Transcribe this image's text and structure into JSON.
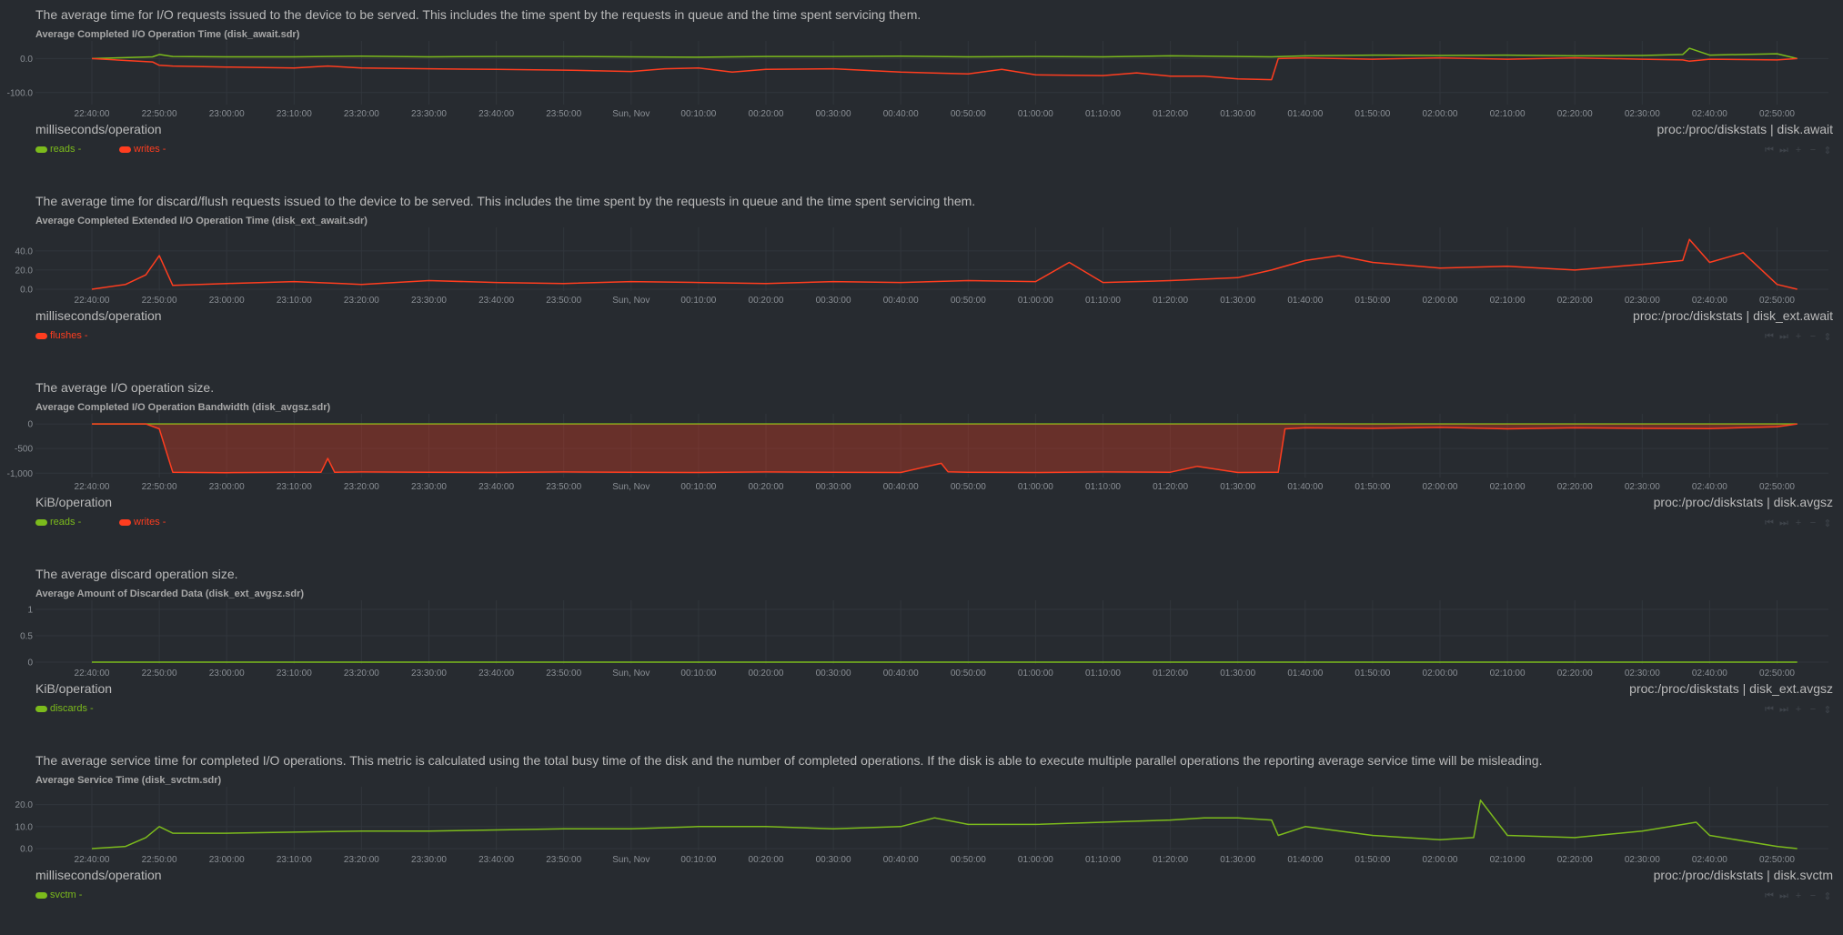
{
  "sections": [
    {
      "description": "The average time for I/O requests issued to the device to be served. This includes the time spent by the requests in queue and the time spent servicing them.",
      "title": "Average Completed I/O Operation Time (disk_await.sdr)",
      "units": "milliseconds/operation",
      "context": "proc:/proc/diskstats | disk.await",
      "legend": [
        {
          "label": "reads",
          "value": "-",
          "color": "#7cbb1c"
        },
        {
          "label": "writes",
          "value": "-",
          "color": "#ff3d1f"
        }
      ]
    },
    {
      "description": "The average time for discard/flush requests issued to the device to be served. This includes the time spent by the requests in queue and the time spent servicing them.",
      "title": "Average Completed Extended I/O Operation Time (disk_ext_await.sdr)",
      "units": "milliseconds/operation",
      "context": "proc:/proc/diskstats | disk_ext.await",
      "legend": [
        {
          "label": "flushes",
          "value": "-",
          "color": "#ff3d1f"
        }
      ]
    },
    {
      "description": "The average I/O operation size.",
      "title": "Average Completed I/O Operation Bandwidth (disk_avgsz.sdr)",
      "units": "KiB/operation",
      "context": "proc:/proc/diskstats | disk.avgsz",
      "legend": [
        {
          "label": "reads",
          "value": "-",
          "color": "#7cbb1c"
        },
        {
          "label": "writes",
          "value": "-",
          "color": "#ff3d1f"
        }
      ]
    },
    {
      "description": "The average discard operation size.",
      "title": "Average Amount of Discarded Data (disk_ext_avgsz.sdr)",
      "units": "KiB/operation",
      "context": "proc:/proc/diskstats | disk_ext.avgsz",
      "legend": [
        {
          "label": "discards",
          "value": "-",
          "color": "#7cbb1c"
        }
      ]
    },
    {
      "description": "The average service time for completed I/O operations. This metric is calculated using the total busy time of the disk and the number of completed operations. If the disk is able to execute multiple parallel operations the reporting average service time will be misleading.",
      "title": "Average Service Time (disk_svctm.sdr)",
      "units": "milliseconds/operation",
      "context": "proc:/proc/diskstats | disk.svctm",
      "legend": [
        {
          "label": "svctm",
          "value": "-",
          "color": "#7cbb1c"
        }
      ]
    }
  ],
  "toolbar": [
    "⏮",
    "⏭",
    "+",
    "−",
    "⇕"
  ],
  "chart_data": [
    {
      "type": "line",
      "title": "Average Completed I/O Operation Time (disk_await.sdr)",
      "ylabel": "milliseconds/operation",
      "yticks": [
        "0.0",
        "-100.0"
      ],
      "ylim": [
        -130,
        25
      ],
      "xticks": [
        "22:40:00",
        "22:50:00",
        "23:00:00",
        "23:10:00",
        "23:20:00",
        "23:30:00",
        "23:40:00",
        "23:50:00",
        "Sun, Nov",
        "00:10:00",
        "00:20:00",
        "00:30:00",
        "00:40:00",
        "00:50:00",
        "01:00:00",
        "01:10:00",
        "01:20:00",
        "01:30:00",
        "01:40:00",
        "01:50:00",
        "02:00:00",
        "02:10:00",
        "02:20:00",
        "02:30:00",
        "02:40:00",
        "02:50:00"
      ],
      "series": [
        {
          "name": "reads",
          "color": "#7cbb1c",
          "x": [
            0,
            0.9,
            1,
            1.2,
            2,
            3,
            4,
            5,
            6,
            7,
            8,
            9,
            10,
            11,
            12,
            13,
            14,
            15,
            16,
            17,
            17.5,
            18,
            19,
            20,
            21,
            22,
            23,
            23.6,
            23.7,
            24,
            25,
            25.3
          ],
          "y": [
            0,
            5,
            12,
            6,
            5,
            5,
            7,
            5,
            6,
            6,
            5,
            4,
            6,
            6,
            7,
            5,
            6,
            5,
            8,
            6,
            5,
            8,
            10,
            9,
            10,
            8,
            9,
            12,
            30,
            10,
            14,
            0
          ]
        },
        {
          "name": "writes",
          "color": "#ff3d1f",
          "x": [
            0,
            0.9,
            1,
            1.2,
            2,
            3,
            3.5,
            4,
            5,
            6,
            7,
            8,
            8.5,
            9,
            9.5,
            10,
            11,
            12,
            13,
            13.5,
            14,
            15,
            15.5,
            16,
            16.5,
            17,
            17.5,
            17.6,
            18,
            19,
            20,
            21,
            22,
            23,
            23.6,
            23.7,
            24,
            25,
            25.3
          ],
          "y": [
            0,
            -10,
            -20,
            -22,
            -25,
            -28,
            -22,
            -28,
            -30,
            -32,
            -34,
            -38,
            -30,
            -28,
            -40,
            -32,
            -30,
            -40,
            -45,
            -32,
            -48,
            -50,
            -42,
            -52,
            -52,
            -60,
            -62,
            0,
            2,
            -2,
            2,
            -2,
            2,
            -2,
            -4,
            -8,
            -2,
            -4,
            0
          ]
        }
      ]
    },
    {
      "type": "line",
      "title": "Average Completed Extended I/O Operation Time (disk_ext_await.sdr)",
      "ylabel": "milliseconds/operation",
      "yticks": [
        "40.0",
        "20.0",
        "0.0"
      ],
      "ylim": [
        0,
        55
      ],
      "xticks": [
        "22:40:00",
        "22:50:00",
        "23:00:00",
        "23:10:00",
        "23:20:00",
        "23:30:00",
        "23:40:00",
        "23:50:00",
        "Sun, Nov",
        "00:10:00",
        "00:20:00",
        "00:30:00",
        "00:40:00",
        "00:50:00",
        "01:00:00",
        "01:10:00",
        "01:20:00",
        "01:30:00",
        "01:40:00",
        "01:50:00",
        "02:00:00",
        "02:10:00",
        "02:20:00",
        "02:30:00",
        "02:40:00",
        "02:50:00"
      ],
      "series": [
        {
          "name": "flushes",
          "color": "#ff3d1f",
          "x": [
            0,
            0.5,
            0.8,
            1,
            1.2,
            2,
            3,
            4,
            5,
            6,
            7,
            8,
            9,
            10,
            11,
            12,
            13,
            14,
            14.5,
            15,
            16,
            17,
            17.5,
            18,
            18.5,
            19,
            20,
            21,
            22,
            23,
            23.6,
            23.7,
            24,
            24.5,
            25,
            25.3
          ],
          "y": [
            0,
            5,
            15,
            35,
            4,
            6,
            8,
            5,
            9,
            7,
            6,
            8,
            7,
            6,
            8,
            7,
            9,
            8,
            28,
            7,
            9,
            12,
            20,
            30,
            35,
            28,
            22,
            24,
            20,
            26,
            30,
            52,
            28,
            38,
            5,
            0
          ]
        }
      ]
    },
    {
      "type": "area",
      "title": "Average Completed I/O Operation Bandwidth (disk_avgsz.sdr)",
      "ylabel": "KiB/operation",
      "yticks": [
        "0",
        "-500",
        "-1,000"
      ],
      "ylim": [
        -1050,
        20
      ],
      "xticks": [
        "22:40:00",
        "22:50:00",
        "23:00:00",
        "23:10:00",
        "23:20:00",
        "23:30:00",
        "23:40:00",
        "23:50:00",
        "Sun, Nov",
        "00:10:00",
        "00:20:00",
        "00:30:00",
        "00:40:00",
        "00:50:00",
        "01:00:00",
        "01:10:00",
        "01:20:00",
        "01:30:00",
        "01:40:00",
        "01:50:00",
        "02:00:00",
        "02:10:00",
        "02:20:00",
        "02:30:00",
        "02:40:00",
        "02:50:00"
      ],
      "series": [
        {
          "name": "reads",
          "color": "#7cbb1c",
          "x": [
            0,
            25.3
          ],
          "y": [
            0,
            0
          ]
        },
        {
          "name": "writes",
          "color": "#ff3d1f",
          "x": [
            0,
            0.8,
            1,
            1.2,
            2,
            3,
            3.4,
            3.5,
            3.6,
            4,
            5,
            6,
            7,
            8,
            9,
            10,
            11,
            12,
            12.6,
            12.7,
            13,
            14,
            15,
            16,
            16.4,
            17,
            17.6,
            17.7,
            18,
            19,
            20,
            21,
            22,
            23,
            24,
            25,
            25.3
          ],
          "y": [
            0,
            0,
            -100,
            -980,
            -990,
            -980,
            -980,
            -700,
            -980,
            -975,
            -980,
            -985,
            -975,
            -980,
            -985,
            -975,
            -980,
            -985,
            -800,
            -970,
            -980,
            -985,
            -975,
            -980,
            -860,
            -985,
            -980,
            -100,
            -80,
            -90,
            -70,
            -100,
            -80,
            -90,
            -95,
            -60,
            0
          ]
        }
      ]
    },
    {
      "type": "line",
      "title": "Average Amount of Discarded Data (disk_ext_avgsz.sdr)",
      "ylabel": "KiB/operation",
      "yticks": [
        "1",
        "0.5",
        "0"
      ],
      "ylim": [
        0,
        1
      ],
      "xticks": [
        "22:40:00",
        "22:50:00",
        "23:00:00",
        "23:10:00",
        "23:20:00",
        "23:30:00",
        "23:40:00",
        "23:50:00",
        "Sun, Nov",
        "00:10:00",
        "00:20:00",
        "00:30:00",
        "00:40:00",
        "00:50:00",
        "01:00:00",
        "01:10:00",
        "01:20:00",
        "01:30:00",
        "01:40:00",
        "01:50:00",
        "02:00:00",
        "02:10:00",
        "02:20:00",
        "02:30:00",
        "02:40:00",
        "02:50:00"
      ],
      "series": [
        {
          "name": "discards",
          "color": "#7cbb1c",
          "x": [
            0,
            25.3
          ],
          "y": [
            0,
            0
          ]
        }
      ]
    },
    {
      "type": "line",
      "title": "Average Service Time (disk_svctm.sdr)",
      "ylabel": "milliseconds/operation",
      "yticks": [
        "20.0",
        "10.0",
        "0.0"
      ],
      "ylim": [
        0,
        24
      ],
      "xticks": [
        "22:40:00",
        "22:50:00",
        "23:00:00",
        "23:10:00",
        "23:20:00",
        "23:30:00",
        "23:40:00",
        "23:50:00",
        "Sun, Nov",
        "00:10:00",
        "00:20:00",
        "00:30:00",
        "00:40:00",
        "00:50:00",
        "01:00:00",
        "01:10:00",
        "01:20:00",
        "01:30:00",
        "01:40:00",
        "01:50:00",
        "02:00:00",
        "02:10:00",
        "02:20:00",
        "02:30:00",
        "02:40:00",
        "02:50:00"
      ],
      "series": [
        {
          "name": "svctm",
          "color": "#7cbb1c",
          "x": [
            0,
            0.5,
            0.8,
            1,
            1.2,
            2,
            3,
            4,
            5,
            6,
            7,
            8,
            9,
            10,
            11,
            12,
            12.5,
            13,
            14,
            15,
            16,
            16.5,
            17,
            17.5,
            17.6,
            18,
            19,
            20,
            20.5,
            20.6,
            21,
            22,
            23,
            23.8,
            24,
            25,
            25.3
          ],
          "y": [
            0,
            1,
            5,
            10,
            7,
            7,
            7.5,
            8,
            8,
            8.5,
            9,
            9,
            10,
            10,
            9,
            10,
            14,
            11,
            11,
            12,
            13,
            14,
            14,
            13,
            6,
            10,
            6,
            4,
            5,
            22,
            6,
            5,
            8,
            12,
            6,
            1,
            0
          ]
        }
      ]
    }
  ]
}
